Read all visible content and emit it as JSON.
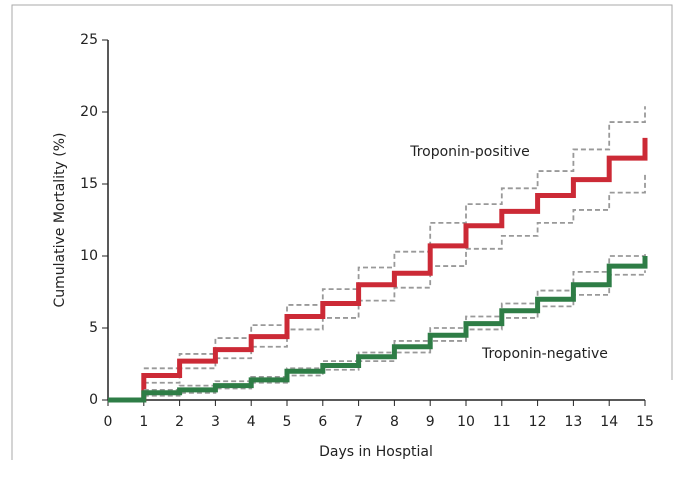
{
  "chart_data": {
    "type": "step",
    "x_label": "Days in Hosptial",
    "y_label": "Cumulative Mortality (%)",
    "x": [
      0,
      1,
      2,
      3,
      4,
      5,
      6,
      7,
      8,
      9,
      10,
      11,
      12,
      13,
      14,
      15
    ],
    "xlim": [
      0,
      15
    ],
    "xticks": [
      0,
      1,
      2,
      3,
      4,
      5,
      6,
      7,
      8,
      9,
      10,
      11,
      12,
      13,
      14,
      15
    ],
    "ylim": [
      0,
      25
    ],
    "yticks": [
      0,
      5,
      10,
      15,
      20,
      25
    ],
    "ci_color": "#999999",
    "series": [
      {
        "name": "Troponin-positive",
        "color": "#cc2a36",
        "values": [
          0,
          1.7,
          2.7,
          3.5,
          4.4,
          5.8,
          6.7,
          8.0,
          8.8,
          10.7,
          12.1,
          13.1,
          14.2,
          15.3,
          16.8,
          18.2
        ],
        "ci_upper": [
          null,
          2.2,
          3.2,
          4.3,
          5.2,
          6.6,
          7.7,
          9.2,
          10.3,
          12.3,
          13.6,
          14.7,
          15.9,
          17.4,
          19.3,
          20.4
        ],
        "ci_lower": [
          null,
          1.2,
          2.2,
          2.9,
          3.7,
          4.9,
          5.7,
          6.9,
          7.8,
          9.3,
          10.5,
          11.4,
          12.3,
          13.2,
          14.4,
          15.7
        ]
      },
      {
        "name": "Troponin-negative",
        "color": "#2e7d46",
        "values": [
          0,
          0.5,
          0.7,
          1.0,
          1.4,
          2.0,
          2.4,
          3.0,
          3.7,
          4.5,
          5.3,
          6.2,
          7.0,
          8.0,
          9.3,
          10.0
        ],
        "ci_upper": [
          null,
          0.7,
          1.0,
          1.3,
          1.6,
          2.2,
          2.7,
          3.3,
          4.1,
          5.0,
          5.8,
          6.7,
          7.6,
          8.9,
          10.0,
          10.3
        ],
        "ci_lower": [
          null,
          0.3,
          0.5,
          0.8,
          1.2,
          1.7,
          2.1,
          2.7,
          3.3,
          4.1,
          4.9,
          5.7,
          6.5,
          7.3,
          8.7,
          9.0
        ]
      }
    ]
  }
}
